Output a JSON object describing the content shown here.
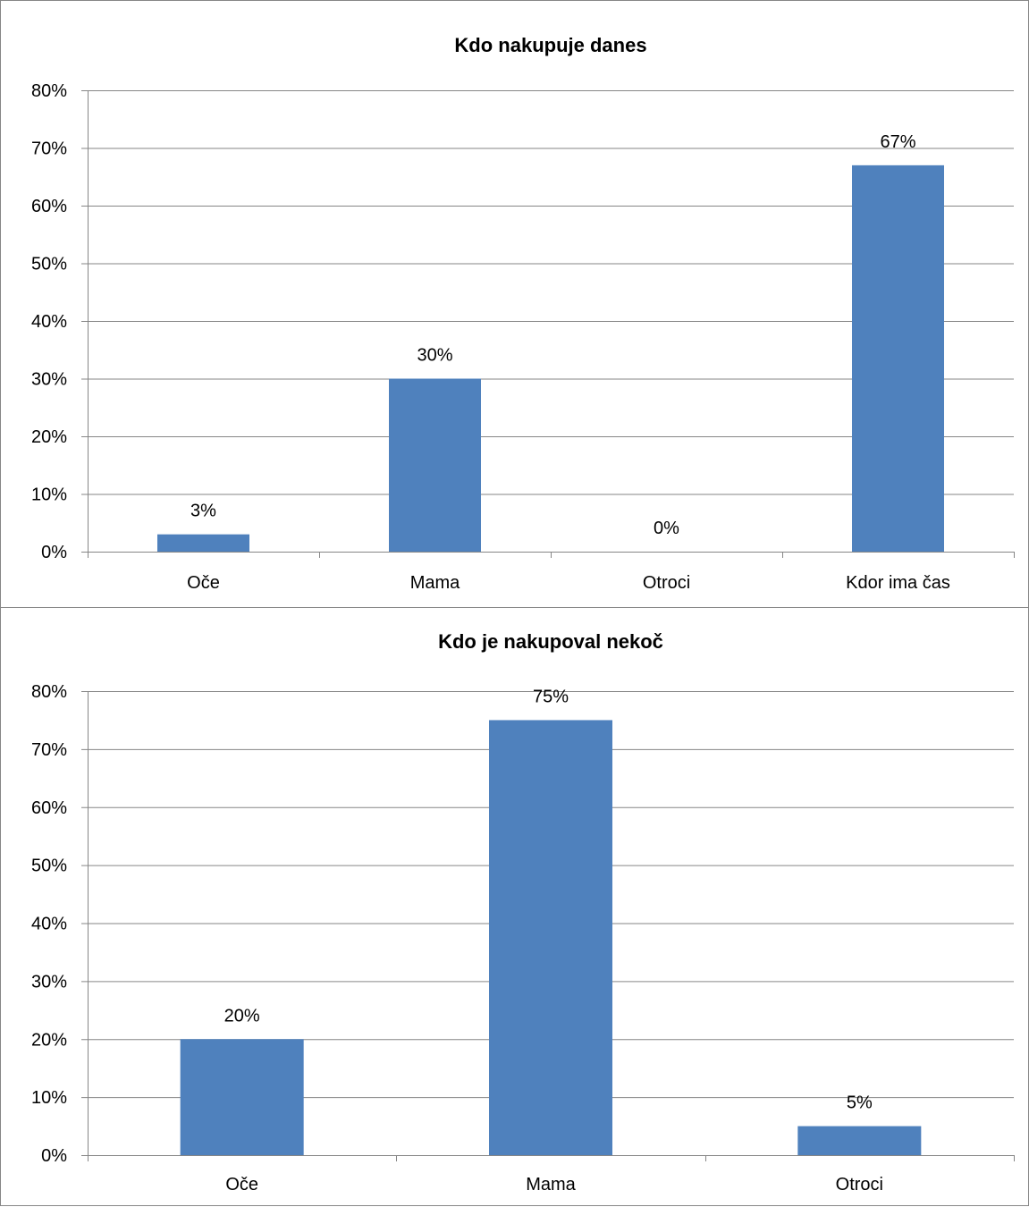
{
  "chart_data": [
    {
      "type": "bar",
      "title": "Kdo nakupuje danes",
      "categories": [
        "Oče",
        "Mama",
        "Otroci",
        "Kdor ima čas"
      ],
      "values": [
        3,
        30,
        0,
        67
      ],
      "data_labels": [
        "3%",
        "30%",
        "0%",
        "67%"
      ],
      "xlabel": "",
      "ylabel": "",
      "ylim": [
        0,
        80
      ],
      "yticks": [
        0,
        10,
        20,
        30,
        40,
        50,
        60,
        70,
        80
      ],
      "ytick_labels": [
        "0%",
        "10%",
        "20%",
        "30%",
        "40%",
        "50%",
        "60%",
        "70%",
        "80%"
      ],
      "grid": true,
      "legend": "none",
      "bar_color": "#4F81BD"
    },
    {
      "type": "bar",
      "title": "Kdo je nakupoval nekoč",
      "categories": [
        "Oče",
        "Mama",
        "Otroci"
      ],
      "values": [
        20,
        75,
        5
      ],
      "data_labels": [
        "20%",
        "75%",
        "5%"
      ],
      "xlabel": "",
      "ylabel": "",
      "ylim": [
        0,
        80
      ],
      "yticks": [
        0,
        10,
        20,
        30,
        40,
        50,
        60,
        70,
        80
      ],
      "ytick_labels": [
        "0%",
        "10%",
        "20%",
        "30%",
        "40%",
        "50%",
        "60%",
        "70%",
        "80%"
      ],
      "grid": true,
      "legend": "none",
      "bar_color": "#4F81BD"
    }
  ]
}
